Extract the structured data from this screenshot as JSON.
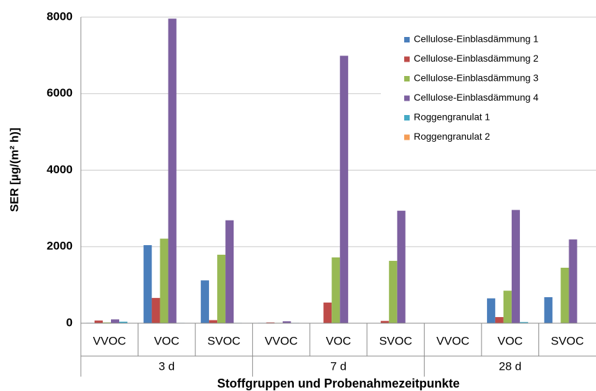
{
  "chart_data": {
    "type": "bar",
    "x_label": "Stoffgruppen und Probenahmezeitpunkte",
    "y_label": "SER [µg/(m² h)]",
    "categories": [
      "VVOC",
      "VOC",
      "SVOC",
      "VVOC",
      "VOC",
      "SVOC",
      "VVOC",
      "VOC",
      "SVOC"
    ],
    "groups": [
      "3 d",
      "7 d",
      "28 d"
    ],
    "series": [
      {
        "name": "Cellulose-Einblasdämmung 1",
        "color": "#4a7ebb",
        "values": [
          10,
          2040,
          1120,
          10,
          0,
          0,
          0,
          650,
          680
        ]
      },
      {
        "name": "Cellulose-Einblasdämmung 2",
        "color": "#be4b48",
        "values": [
          70,
          660,
          80,
          20,
          540,
          60,
          0,
          160,
          0
        ]
      },
      {
        "name": "Cellulose-Einblasdämmung 3",
        "color": "#98b954",
        "values": [
          20,
          2210,
          1790,
          10,
          1720,
          1630,
          0,
          850,
          1450
        ]
      },
      {
        "name": "Cellulose-Einblasdämmung 4",
        "color": "#7d60a0",
        "values": [
          100,
          7960,
          2690,
          50,
          6990,
          2940,
          0,
          2960,
          2190
        ]
      },
      {
        "name": "Roggengranulat 1",
        "color": "#46aac5",
        "values": [
          40,
          10,
          10,
          10,
          0,
          0,
          0,
          30,
          0
        ]
      },
      {
        "name": "Roggengranulat 2",
        "color": "#f59d56",
        "values": [
          0,
          0,
          0,
          0,
          0,
          0,
          0,
          0,
          0
        ]
      }
    ],
    "ylim": [
      0,
      8000
    ],
    "yticks": [
      0,
      2000,
      4000,
      6000,
      8000
    ],
    "grid": true,
    "legend": "upper right"
  }
}
